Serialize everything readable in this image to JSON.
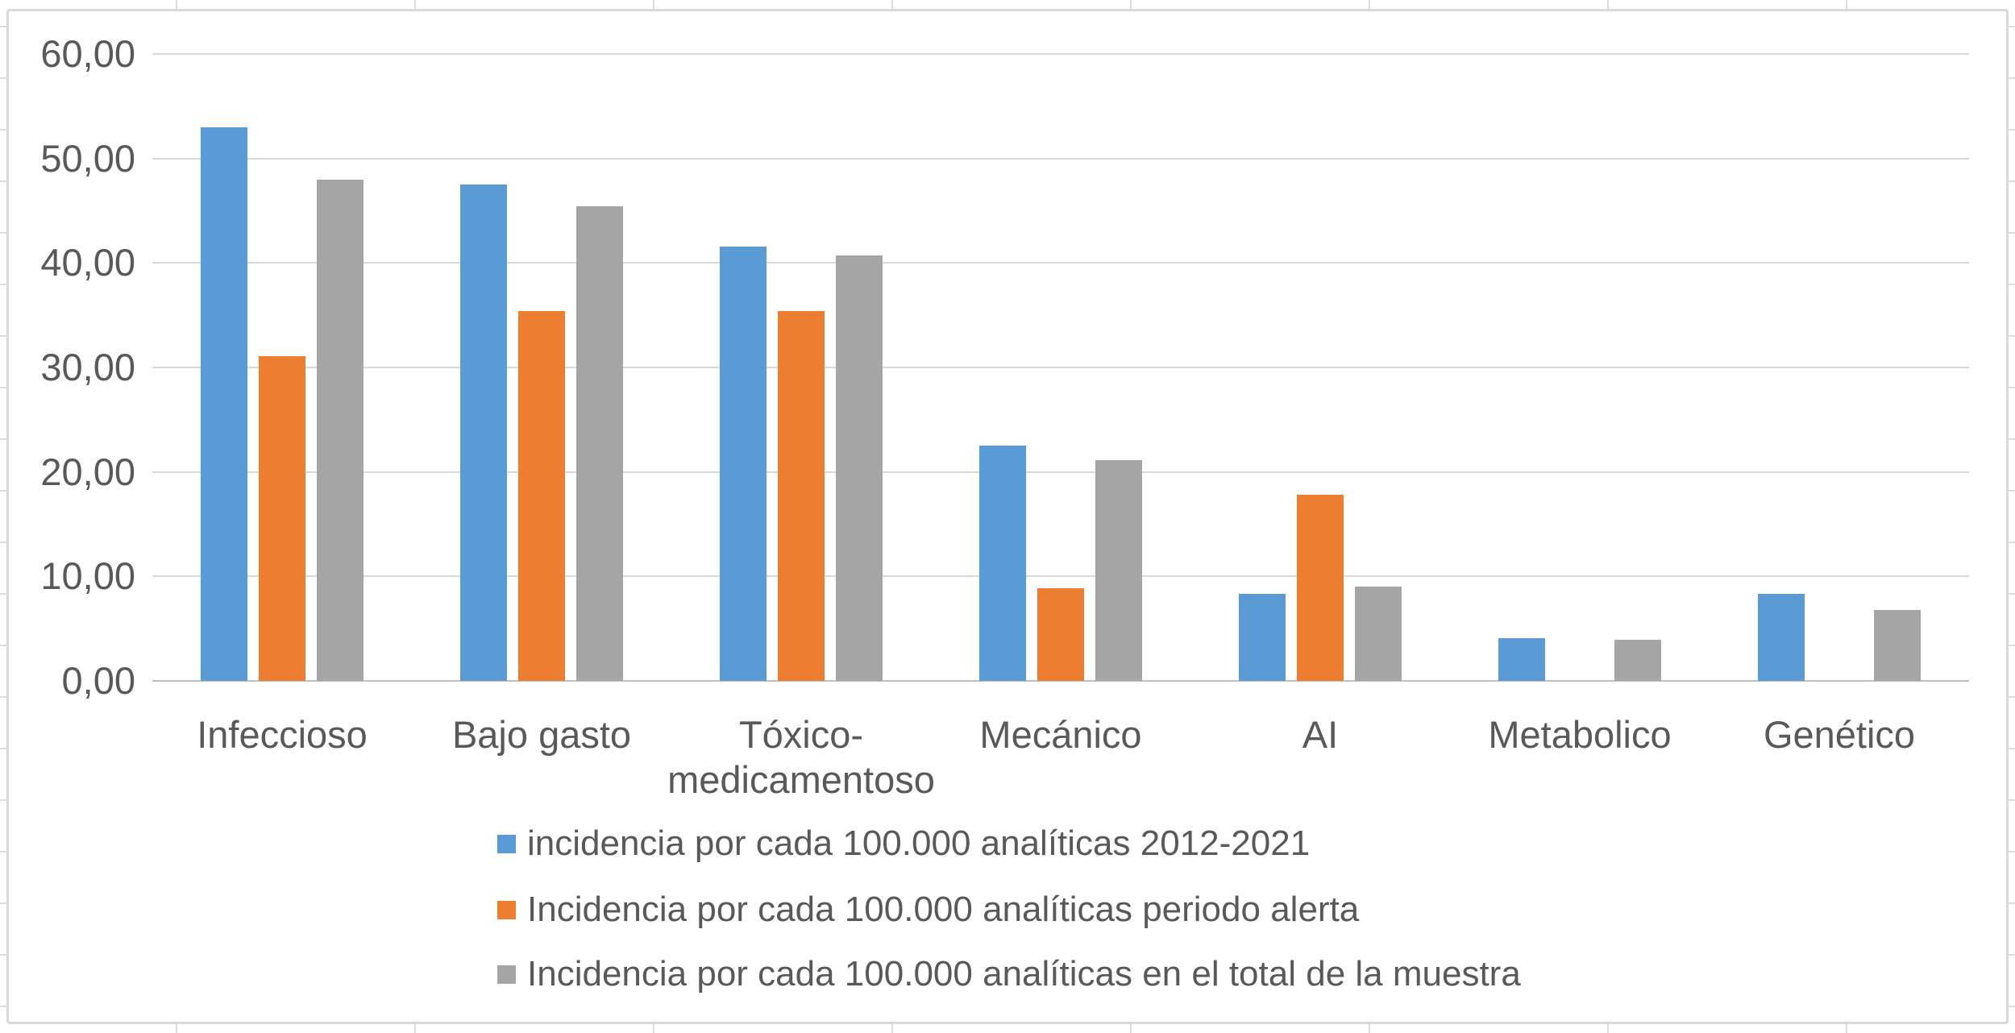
{
  "chart_data": {
    "type": "bar",
    "title": "",
    "xlabel": "",
    "ylabel": "",
    "categories": [
      "Infeccioso",
      "Bajo gasto",
      "Tóxico-medicamentoso",
      "Mecánico",
      "AI",
      "Metabolico",
      "Genético"
    ],
    "category_display_lines": [
      [
        "Infeccioso"
      ],
      [
        "Bajo gasto"
      ],
      [
        "Tóxico-",
        "medicamentoso"
      ],
      [
        "Mecánico"
      ],
      [
        "AI"
      ],
      [
        "Metabolico"
      ],
      [
        "Genético"
      ]
    ],
    "series": [
      {
        "name": "incidencia por cada 100.000 analíticas 2012-2021",
        "color": "#5B9BD5",
        "values": [
          53.0,
          47.5,
          41.6,
          22.5,
          8.3,
          4.1,
          8.3
        ]
      },
      {
        "name": "Incidencia por cada 100.000 analíticas periodo alerta",
        "color": "#ED7D31",
        "values": [
          31.1,
          35.4,
          35.4,
          8.9,
          17.8,
          null,
          null
        ]
      },
      {
        "name": "Incidencia por cada 100.000 analíticas en el total de la muestra",
        "color": "#A5A5A5",
        "values": [
          48.0,
          45.4,
          40.7,
          21.1,
          9.0,
          3.9,
          6.8
        ]
      }
    ],
    "ylim": [
      0,
      60
    ],
    "ytick_step": 10,
    "ytick_labels": [
      "0,00",
      "10,00",
      "20,00",
      "30,00",
      "40,00",
      "50,00",
      "60,00"
    ],
    "grid": true,
    "legend_position": "bottom-left"
  },
  "colors": {
    "axis_text": "#595959",
    "gridline": "#D9D9D9",
    "axis_line": "#BFBFBF",
    "chart_border": "#D9D9D9",
    "sheet_line": "#DCDCDC"
  }
}
